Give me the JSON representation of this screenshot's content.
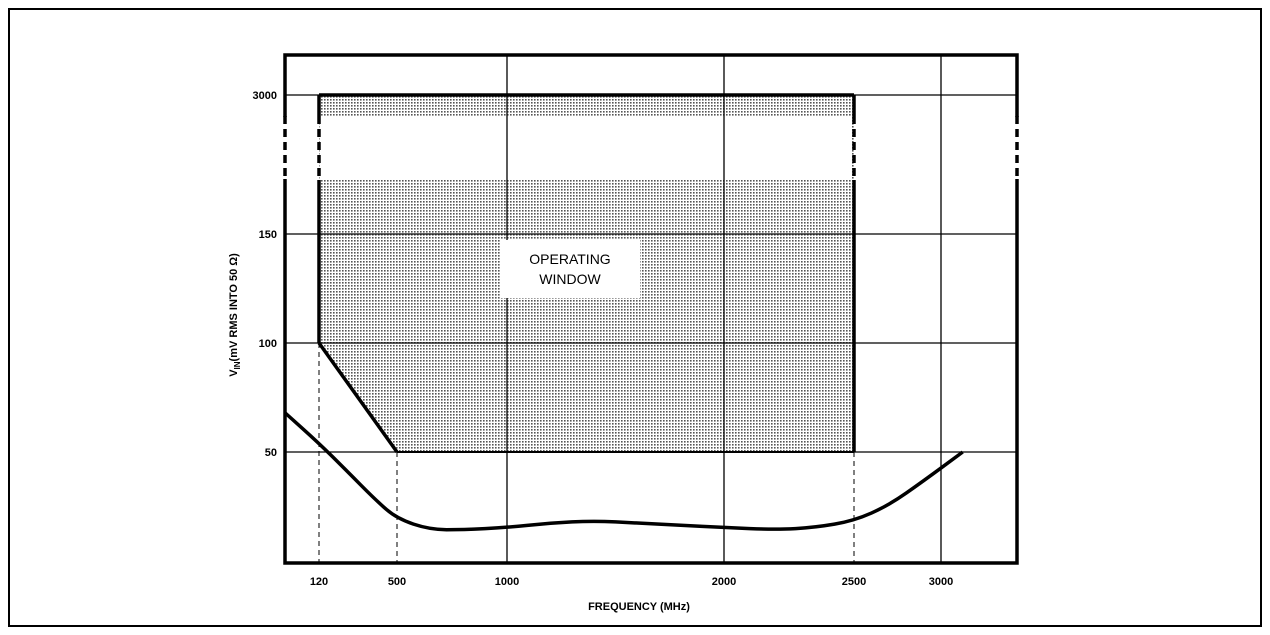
{
  "chart_data": {
    "type": "line",
    "xlabel": "FREQUENCY (MHz)",
    "ylabel_main": "V",
    "ylabel_sub": "IN",
    "ylabel_rest": "(mV RMS INTO 50 Ω)",
    "x_ticks": [
      "120",
      "500",
      "1000",
      "2000",
      "2500",
      "3000"
    ],
    "x_tick_values": [
      120,
      500,
      1000,
      2000,
      2500,
      3000
    ],
    "y_ticks": [
      "50",
      "100",
      "150",
      "3000"
    ],
    "y_tick_values": [
      50,
      100,
      150,
      3000
    ],
    "grid": true,
    "annotation_lines": [
      "OPERATING",
      "WINDOW"
    ],
    "operating_window": {
      "x_range": [
        120,
        2500
      ],
      "y_range": [
        50,
        3000
      ],
      "corner_line": [
        [
          120,
          100
        ],
        [
          500,
          50
        ]
      ],
      "upper_band_gap": "axis break between 150 and 3000"
    },
    "series": [
      {
        "points": [
          [
            0,
            68
          ],
          [
            120,
            54
          ],
          [
            250,
            42
          ],
          [
            400,
            28
          ],
          [
            500,
            20
          ],
          [
            650,
            15
          ],
          [
            800,
            15
          ],
          [
            1000,
            16
          ],
          [
            1200,
            18
          ],
          [
            1400,
            19
          ],
          [
            1600,
            18
          ],
          [
            1800,
            17
          ],
          [
            2000,
            16
          ],
          [
            2200,
            15
          ],
          [
            2350,
            16
          ],
          [
            2500,
            19
          ],
          [
            2700,
            26
          ],
          [
            2900,
            37
          ],
          [
            3100,
            50
          ]
        ]
      }
    ]
  }
}
